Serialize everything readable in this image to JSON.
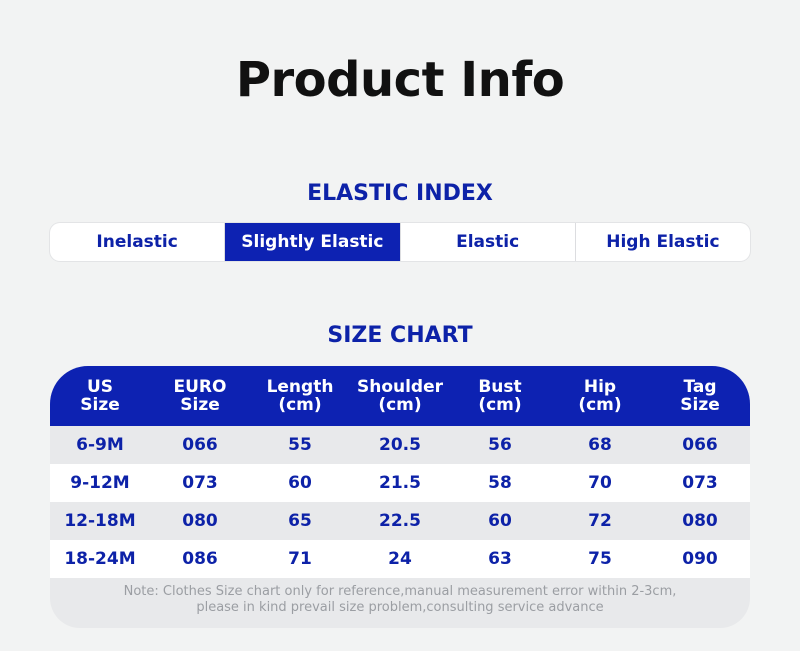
{
  "title": "Product Info",
  "elastic_index": {
    "heading": "ELASTIC INDEX",
    "options": [
      "Inelastic",
      "Slightly Elastic",
      "Elastic",
      "High Elastic"
    ],
    "selected": "Slightly Elastic"
  },
  "size_chart": {
    "heading": "SIZE CHART",
    "columns": [
      "US\nSize",
      "EURO\nSize",
      "Length\n(cm)",
      "Shoulder\n(cm)",
      "Bust\n(cm)",
      "Hip\n(cm)",
      "Tag\nSize"
    ],
    "rows": [
      [
        "6-9M",
        "066",
        "55",
        "20.5",
        "56",
        "68",
        "066"
      ],
      [
        "9-12M",
        "073",
        "60",
        "21.5",
        "58",
        "70",
        "073"
      ],
      [
        "12-18M",
        "080",
        "65",
        "22.5",
        "60",
        "72",
        "080"
      ],
      [
        "18-24M",
        "086",
        "71",
        "24",
        "63",
        "75",
        "090"
      ]
    ],
    "note_line1": "Note: Clothes Size chart only for reference,manual measurement error within 2-3cm,",
    "note_line2": "please in kind prevail size problem,consulting service advance"
  },
  "colors": {
    "accent": "#0d22b2",
    "text_blue": "#0d22a8",
    "background": "#f2f3f3"
  }
}
